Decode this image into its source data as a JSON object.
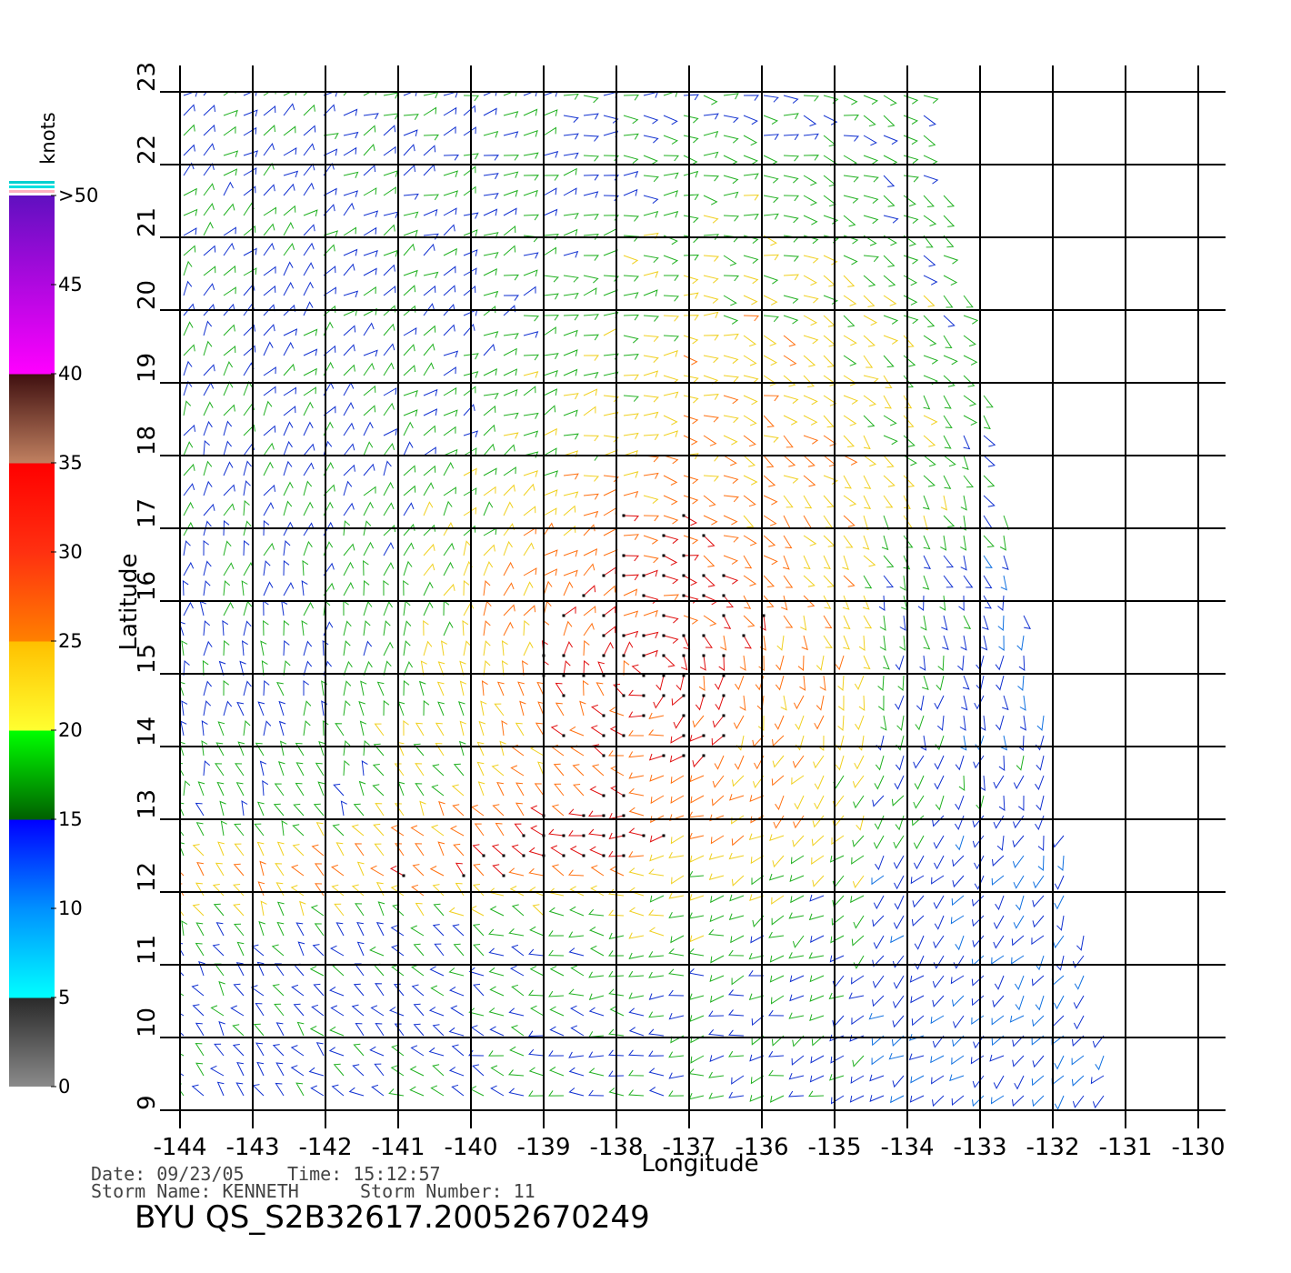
{
  "chart_data": {
    "type": "wind-barbs",
    "xlabel": "Longitude",
    "ylabel": "Latitude",
    "xlim": [
      -144,
      -130
    ],
    "ylim": [
      9,
      23
    ],
    "xticks": [
      -144,
      -143,
      -142,
      -141,
      -140,
      -139,
      -138,
      -137,
      -136,
      -135,
      -134,
      -133,
      -132,
      -131,
      -130
    ],
    "yticks": [
      9,
      10,
      11,
      12,
      13,
      14,
      15,
      16,
      17,
      18,
      19,
      20,
      21,
      22,
      23
    ],
    "grid": true,
    "colorbar": {
      "label": "knots",
      "lim": [
        0,
        50
      ],
      "ticks": [
        0,
        5,
        10,
        15,
        20,
        25,
        30,
        35,
        40,
        45,
        {
          "value": 50,
          "label": ">50"
        }
      ]
    },
    "annotations": [
      "Date: 09/23/05",
      "Time: 15:12:57",
      "Storm Name: KENNETH",
      "Storm Number: 11"
    ],
    "title": "BYU QS_S2B32617.20052670249"
  }
}
